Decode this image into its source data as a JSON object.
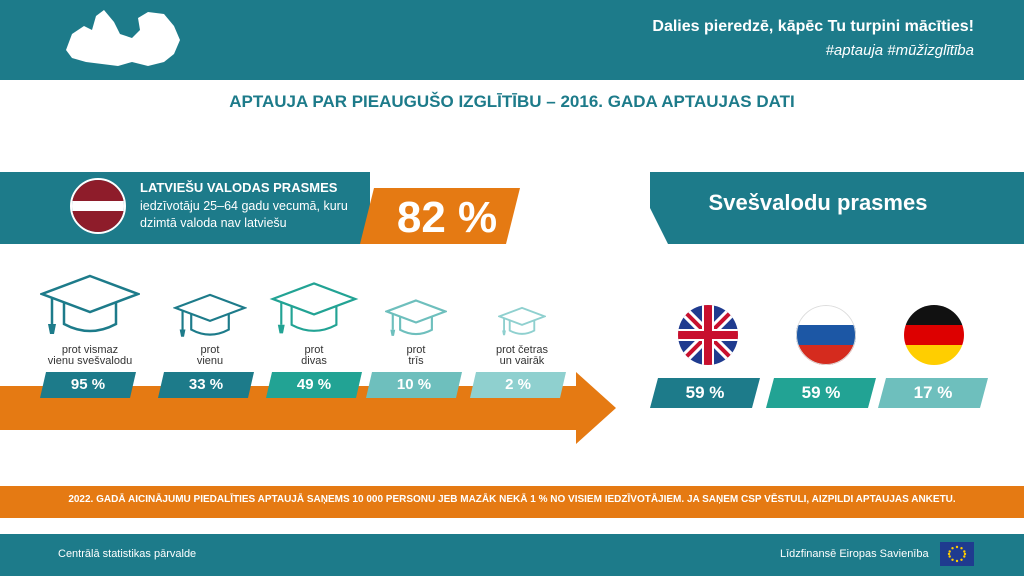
{
  "header": {
    "tagline": "Dalies pieredzē, kāpēc Tu turpini mācīties!",
    "hashtags": "#aptauja #mūžizglītība",
    "map_icon": "latvia-map-icon"
  },
  "title": "APTAUJA PAR PIEAUGUŠO IZGLĪTĪBU – 2016. GADA APTAUJAS DATI",
  "latvian": {
    "flag_icon": "latvia-flag-icon",
    "heading": "LATVIEŠU VALODAS PRASMES",
    "description": "iedzīvotāju 25–64 gadu vecumā, kuru dzimtā valoda nav latviešu",
    "value": "82 %"
  },
  "foreign": {
    "heading": "Svešvalodu prasmes",
    "languages": [
      {
        "flag_icon": "uk-flag-icon",
        "value": "59 %",
        "color": "#1d7b8a"
      },
      {
        "flag_icon": "russia-flag-icon",
        "value": "59 %",
        "color": "#22a394"
      },
      {
        "flag_icon": "germany-flag-icon",
        "value": "17 %",
        "color": "#6ebfbd"
      }
    ]
  },
  "levels": [
    {
      "label": "prot vismaz\nvienu svešvalodu",
      "value": "95 %",
      "color": "#1d7b8a"
    },
    {
      "label": "prot\nvienu",
      "value": "33 %",
      "color": "#1d7b8a"
    },
    {
      "label": "prot\ndivas",
      "value": "49 %",
      "color": "#22a394"
    },
    {
      "label": "prot\ntrīs",
      "value": "10 %",
      "color": "#6ebfbd"
    },
    {
      "label": "prot četras\nun vairāk",
      "value": "2 %",
      "color": "#8fd0cf"
    }
  ],
  "colors": {
    "teal_dark": "#1d7b8a",
    "orange": "#e57a13"
  },
  "notice": "2022. GADĀ AICINĀJUMU PIEDALĪTIES APTAUJĀ SAŅEMS 10 000 PERSONU JEB MAZĀK NEKĀ 1 % NO VISIEM IEDZĪVOTĀJIEM. JA SAŅEM CSP VĒSTULI, AIZPILDI APTAUJAS ANKETU.",
  "footer": {
    "left": "Centrālā statistikas pārvalde",
    "right": "Līdzfinansē Eiropas Savienība",
    "eu_icon": "eu-flag-icon"
  }
}
